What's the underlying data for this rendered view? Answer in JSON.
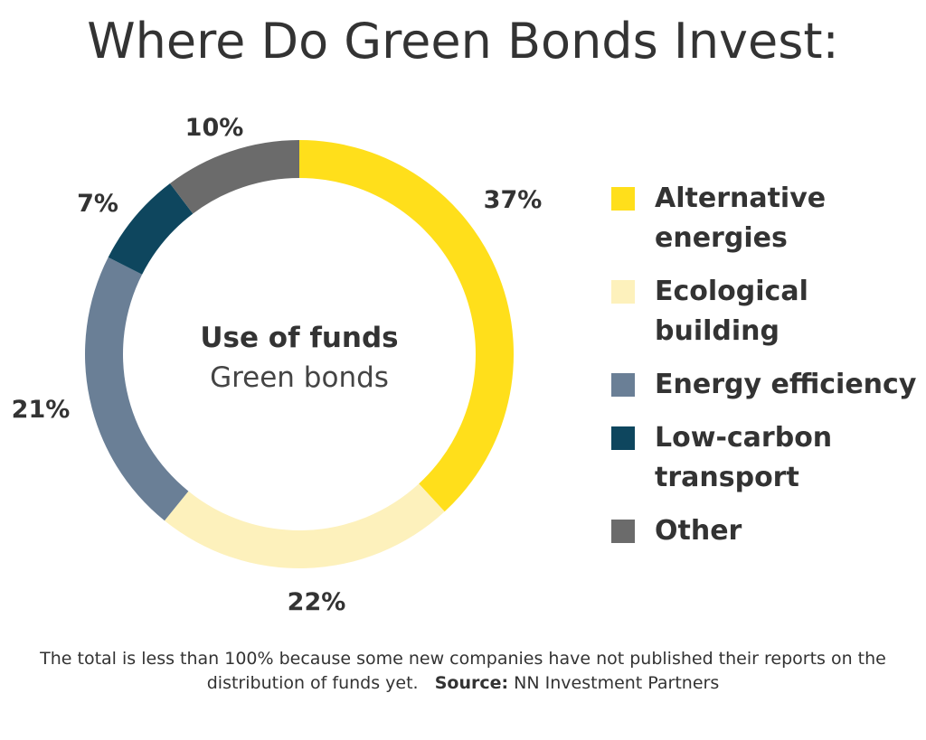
{
  "chart_data": {
    "type": "pie",
    "donut": true,
    "title": "Where Do Green Bonds Invest:",
    "center_label": [
      "Use of funds",
      "Green bonds"
    ],
    "categories": [
      "Alternative energies",
      "Ecological building",
      "Energy efficiency",
      "Low-carbon transport",
      "Other"
    ],
    "legend_lines": [
      [
        "Alternative",
        "energies"
      ],
      [
        "Ecological",
        "building"
      ],
      [
        "Energy efficiency"
      ],
      [
        "Low-carbon",
        "transport"
      ],
      [
        "Other"
      ]
    ],
    "values": [
      37,
      22,
      21,
      7,
      10
    ],
    "labels": [
      "37%",
      "22%",
      "21%",
      "7%",
      "10%"
    ],
    "colors": [
      "#FFDF1B",
      "#FDF1BC",
      "#6A7F96",
      "#0E465E",
      "#6B6B6B"
    ],
    "legend_position": "right"
  },
  "footnote": {
    "text": "The total is less than 100% because some new companies have not published their reports on the distribution of funds yet.",
    "source_label": "Source:",
    "source": "NN Investment Partners"
  }
}
